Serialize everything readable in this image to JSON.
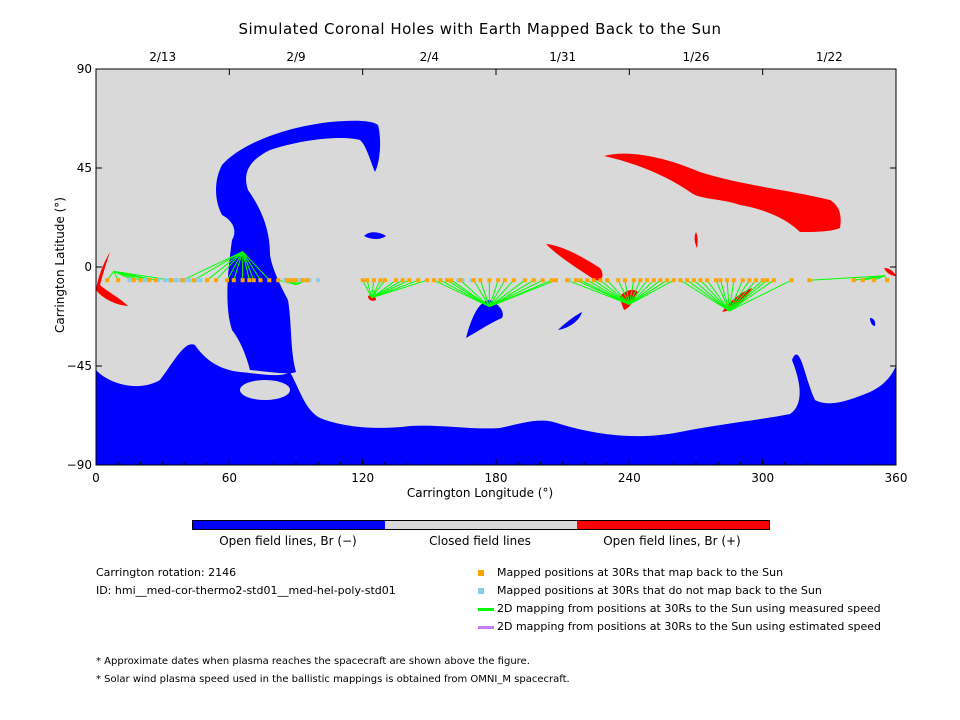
{
  "chart_data": {
    "type": "map",
    "title": "Simulated Coronal Holes with Earth Mapped Back to the Sun",
    "xlabel": "Carrington Longitude (°)",
    "ylabel": "Carrington Latitude (°)",
    "xlim": [
      0,
      360
    ],
    "ylim": [
      -90,
      90
    ],
    "x_ticks": [
      0,
      60,
      120,
      180,
      240,
      300,
      360
    ],
    "y_ticks": [
      90,
      45,
      0,
      -45,
      -90
    ],
    "y_tick_labels": [
      "90",
      "45",
      "0",
      "−45",
      "−90"
    ],
    "top_axis": {
      "labels": [
        {
          "lon": 30,
          "date": "2/13"
        },
        {
          "lon": 90,
          "date": "2/9"
        },
        {
          "lon": 150,
          "date": "2/4"
        },
        {
          "lon": 210,
          "date": "1/31"
        },
        {
          "lon": 270,
          "date": "1/26"
        },
        {
          "lon": 330,
          "date": "1/22"
        }
      ]
    },
    "colors": {
      "open_negative": "#0000ff",
      "closed": "#d9d9d9",
      "open_positive": "#ff0000",
      "mapped_back": "#ffa500",
      "not_mapped_back": "#87ceeb",
      "measured_speed": "#00ff00",
      "estimated_speed": "#c080f0"
    },
    "mapped_points_lon": [
      5,
      10,
      17,
      20,
      24,
      27,
      34,
      39,
      44,
      50,
      54,
      59,
      62,
      66,
      69,
      71,
      74,
      78,
      82,
      86,
      88,
      90,
      93,
      95,
      120,
      122,
      125,
      128,
      130,
      135,
      138,
      141,
      145,
      149,
      152,
      155,
      158,
      160,
      164,
      170,
      173,
      177,
      181,
      184,
      188,
      193,
      197,
      201,
      205,
      207,
      212,
      216,
      218,
      221,
      224,
      227,
      230,
      235,
      238,
      242,
      245,
      248,
      251,
      254,
      257,
      260,
      263,
      266,
      269,
      272,
      275,
      279,
      281,
      284,
      287,
      291,
      294,
      297,
      300,
      302,
      305,
      313,
      321,
      341,
      345,
      350,
      356
    ],
    "unmapped_points_lon": [
      15,
      22,
      28,
      31,
      33,
      36,
      38,
      40,
      42,
      45,
      47,
      85,
      87,
      88,
      92,
      96,
      100,
      163,
      165,
      169,
      213
    ],
    "mapped_points_lat": -6,
    "footpoints": [
      {
        "lon": 66,
        "lat": 7
      },
      {
        "lon": 90,
        "lat": -8
      },
      {
        "lon": 124,
        "lat": -14
      },
      {
        "lon": 177,
        "lat": -18
      },
      {
        "lon": 240,
        "lat": -17
      },
      {
        "lon": 285,
        "lat": -20
      },
      {
        "lon": 8,
        "lat": -2
      },
      {
        "lon": 355,
        "lat": -4
      }
    ]
  },
  "colorbar": {
    "labels": [
      "Open field lines, Br (−)",
      "Closed field lines",
      "Open field lines, Br (+)"
    ]
  },
  "info": {
    "rotation": "Carrington rotation: 2146",
    "id": "ID: hmi__med-cor-thermo2-std01__med-hel-poly-std01"
  },
  "legend": [
    {
      "label": "Mapped positions at 30Rs that map back to the Sun",
      "kind": "square",
      "color": "#ffa500"
    },
    {
      "label": "Mapped positions at 30Rs that do not map back to the Sun",
      "kind": "square",
      "color": "#87ceeb"
    },
    {
      "label": "2D mapping from positions at 30Rs to the Sun using measured speed",
      "kind": "line",
      "color": "#00ff00"
    },
    {
      "label": "2D mapping from positions at 30Rs to the Sun using estimated speed",
      "kind": "line",
      "color": "#c080f0"
    }
  ],
  "notes": [
    "* Approximate dates when plasma reaches the spacecraft are shown above the figure.",
    "* Solar wind plasma speed used in the ballistic mappings is obtained from OMNI_M spacecraft."
  ]
}
